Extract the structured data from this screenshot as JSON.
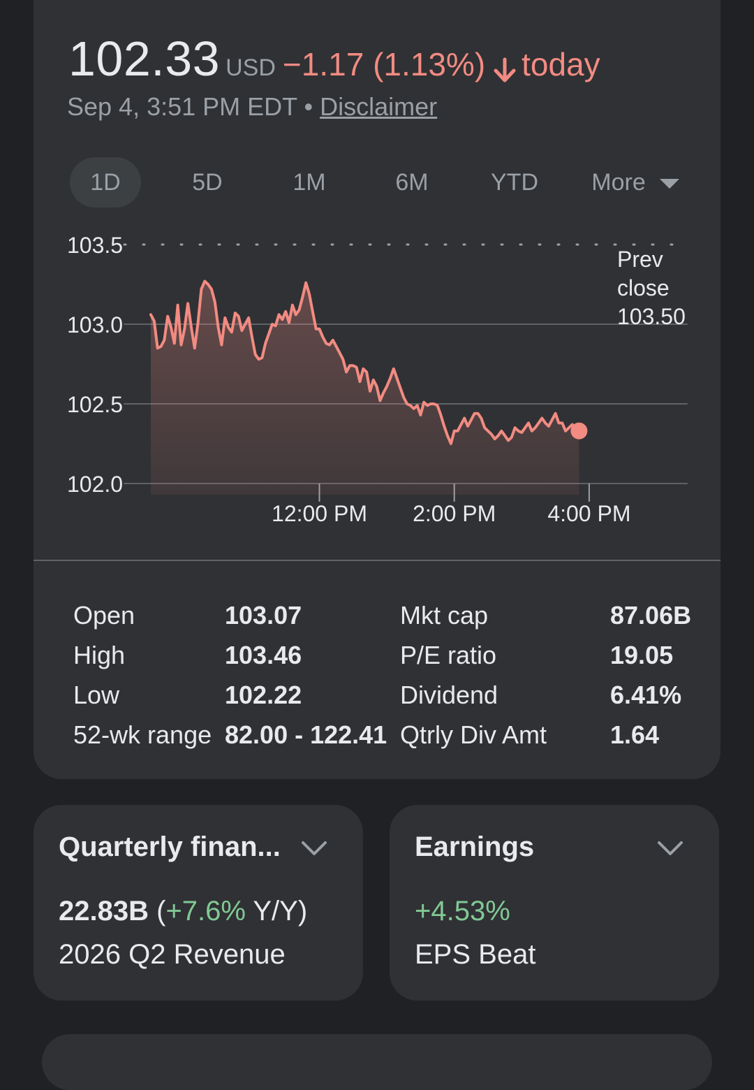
{
  "header": {
    "price": "102.33",
    "currency": "USD",
    "change": "−1.17 (1.13%)",
    "direction_icon": "arrow-down-icon",
    "period": "today",
    "timestamp": "Sep 4, 3:51 PM EDT",
    "separator": "•",
    "disclaimer": "Disclaimer"
  },
  "tabs": [
    {
      "label": "1D",
      "active": true
    },
    {
      "label": "5D"
    },
    {
      "label": "1M"
    },
    {
      "label": "6M"
    },
    {
      "label": "YTD"
    },
    {
      "label": "More"
    }
  ],
  "chart_data": {
    "type": "line",
    "y_ticks": [
      "103.5",
      "103.0",
      "102.5",
      "102.0"
    ],
    "ylim": [
      102.0,
      103.5
    ],
    "x_ticks": [
      "12:00 PM",
      "2:00 PM",
      "4:00 PM"
    ],
    "x_tick_minutes": [
      150,
      270,
      390
    ],
    "prev_close_label": [
      "Prev",
      "close",
      "103.50"
    ],
    "prev_close": 103.5,
    "line_color": "#f28b82",
    "series": [
      {
        "x_minutes": [
          0,
          3,
          6,
          9,
          12,
          15,
          18,
          21,
          24,
          27,
          30,
          33,
          36,
          39,
          42,
          45,
          48,
          51,
          54,
          57,
          60,
          63,
          66,
          69,
          72,
          75,
          78,
          81,
          84,
          87,
          90,
          93,
          96,
          99,
          102,
          105,
          108,
          111,
          114,
          117,
          120,
          123,
          126,
          129,
          132,
          135,
          138,
          141,
          144,
          147,
          150,
          153,
          156,
          159,
          162,
          165,
          168,
          171,
          174,
          177,
          180,
          183,
          186,
          189,
          192,
          195,
          198,
          201,
          204,
          207,
          210,
          213,
          216,
          219,
          222,
          225,
          228,
          231,
          234,
          237,
          240,
          243,
          246,
          249,
          252,
          255,
          258,
          261,
          264,
          267,
          270,
          273,
          276,
          279,
          282,
          285,
          288,
          291,
          294,
          297,
          300,
          303,
          306,
          309,
          312,
          315,
          318,
          321,
          324,
          327,
          330,
          333,
          336,
          339,
          342,
          345,
          348,
          351,
          354,
          357,
          360,
          363,
          366,
          369,
          372,
          375,
          378,
          381
        ],
        "values": [
          103.06,
          103.02,
          102.85,
          102.86,
          102.9,
          103.05,
          102.98,
          102.88,
          103.12,
          102.87,
          102.97,
          103.13,
          102.98,
          102.85,
          103.01,
          103.22,
          103.27,
          103.25,
          103.22,
          103.14,
          102.98,
          102.87,
          103.04,
          102.98,
          102.95,
          103.07,
          103.05,
          102.96,
          103.0,
          103.04,
          102.92,
          102.81,
          102.78,
          102.79,
          102.88,
          102.94,
          103.0,
          102.99,
          103.06,
          103.03,
          103.08,
          103.01,
          103.12,
          103.06,
          103.09,
          103.17,
          103.26,
          103.19,
          103.08,
          102.97,
          102.97,
          102.92,
          102.88,
          102.87,
          102.9,
          102.86,
          102.82,
          102.78,
          102.7,
          102.74,
          102.74,
          102.73,
          102.64,
          102.72,
          102.7,
          102.58,
          102.65,
          102.61,
          102.52,
          102.57,
          102.61,
          102.66,
          102.72,
          102.66,
          102.6,
          102.54,
          102.5,
          102.49,
          102.47,
          102.49,
          102.43,
          102.51,
          102.49,
          102.5,
          102.5,
          102.49,
          102.43,
          102.36,
          102.3,
          102.25,
          102.33,
          102.33,
          102.37,
          102.41,
          102.36,
          102.4,
          102.44,
          102.44,
          102.41,
          102.35,
          102.33,
          102.31,
          102.28,
          102.3,
          102.33,
          102.3,
          102.27,
          102.29,
          102.35,
          102.33,
          102.32,
          102.35,
          102.38,
          102.33,
          102.35,
          102.38,
          102.41,
          102.38,
          102.36,
          102.4,
          102.44,
          102.38,
          102.38,
          102.33,
          102.35,
          102.37,
          102.33,
          102.33
        ]
      }
    ]
  },
  "stats_left": [
    {
      "label": "Open",
      "value": "103.07"
    },
    {
      "label": "High",
      "value": "103.46"
    },
    {
      "label": "Low",
      "value": "102.22"
    },
    {
      "label": "52-wk range",
      "value": "82.00 - 122.41"
    }
  ],
  "stats_right": [
    {
      "label": "Mkt cap",
      "value": "87.06B"
    },
    {
      "label": "P/E ratio",
      "value": "19.05"
    },
    {
      "label": "Dividend",
      "value": "6.41%"
    },
    {
      "label": "Qtrly Div Amt",
      "value": "1.64"
    }
  ],
  "quarterly": {
    "title": "Quarterly finan...",
    "value": "22.83B",
    "open_paren": "(",
    "yoy": "+7.6%",
    "yoy_suffix": " Y/Y)",
    "subtitle": "2026 Q2 Revenue",
    "icon": "chevron-down-icon"
  },
  "earnings": {
    "title": "Earnings",
    "value": "+4.53%",
    "subtitle": "EPS Beat",
    "icon": "chevron-down-icon"
  },
  "colors": {
    "negative": "#f28b82",
    "positive": "#81c995",
    "card": "#303134",
    "background": "#202124"
  }
}
